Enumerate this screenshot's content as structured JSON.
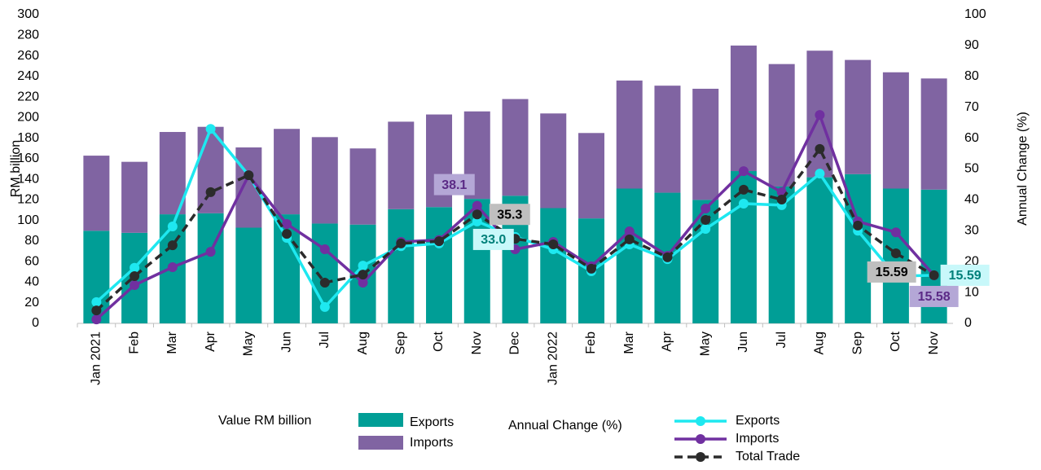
{
  "chart_data": {
    "type": "bar-line",
    "ylabel": "RM billion",
    "y2label": "Annual Change (%)",
    "categories": [
      "Jan 2021",
      "Feb",
      "Mar",
      "Apr",
      "May",
      "Jun",
      "Jul",
      "Aug",
      "Sep",
      "Oct",
      "Nov",
      "Dec",
      "Jan 2022",
      "Feb",
      "Mar",
      "Apr",
      "May",
      "Jun",
      "Jul",
      "Aug",
      "Sep",
      "Oct",
      "Nov"
    ],
    "ylim": [
      0,
      300
    ],
    "yticks": [
      0,
      20,
      40,
      60,
      80,
      100,
      120,
      140,
      160,
      180,
      200,
      220,
      240,
      260,
      280,
      300
    ],
    "y2lim": [
      0,
      100
    ],
    "y2ticks": [
      0,
      10,
      20,
      30,
      40,
      50,
      60,
      70,
      80,
      90,
      100
    ],
    "legend_titles": [
      "Value RM billion",
      "Annual Change (%)"
    ],
    "series": [
      {
        "name": "Exports",
        "kind": "bar",
        "color": "#009e96",
        "values": [
          90,
          88,
          106,
          107,
          93,
          106,
          97,
          96,
          111,
          113,
          121,
          124,
          112,
          102,
          131,
          127,
          120,
          148,
          133,
          142,
          145,
          131,
          130
        ]
      },
      {
        "name": "Imports",
        "kind": "bar",
        "color": "#8064a2",
        "values": [
          73,
          69,
          80,
          84,
          78,
          83,
          84,
          74,
          85,
          90,
          85,
          94,
          92,
          83,
          105,
          104,
          108,
          122,
          119,
          123,
          111,
          113,
          108
        ]
      },
      {
        "name": "Exports",
        "kind": "line",
        "axis": "y2",
        "color": "#1ee8f0",
        "label_bg": "#c8f8fa",
        "label_color": "#00807a",
        "values": [
          6.9,
          18,
          31.4,
          63,
          48,
          27.7,
          5.3,
          18.7,
          25,
          25.9,
          33.0,
          28,
          24,
          16.9,
          25.6,
          20.8,
          30.6,
          38.8,
          38.3,
          48.5,
          30,
          15.3,
          15.59
        ],
        "value_labels": [
          null,
          null,
          null,
          null,
          null,
          null,
          null,
          null,
          null,
          null,
          "33.0",
          null,
          null,
          null,
          null,
          null,
          null,
          null,
          null,
          null,
          null,
          null,
          "15.59"
        ]
      },
      {
        "name": "Imports",
        "kind": "line",
        "axis": "y2",
        "color": "#7030a0",
        "label_bg": "#b4a7d6",
        "label_color": "#5b2a86",
        "values": [
          1.3,
          12.4,
          18.2,
          23.2,
          48,
          32.2,
          24,
          13.2,
          26.4,
          27,
          38.1,
          24,
          26.4,
          18.5,
          29.8,
          21.9,
          37.2,
          49.3,
          42.5,
          67.5,
          33,
          29.5,
          15.58
        ],
        "value_labels": [
          null,
          null,
          null,
          null,
          null,
          null,
          null,
          null,
          null,
          null,
          "38.1",
          null,
          null,
          null,
          null,
          null,
          null,
          null,
          null,
          null,
          null,
          null,
          "15.58"
        ]
      },
      {
        "name": "Total Trade",
        "kind": "line",
        "axis": "y2",
        "color": "#2b2b2b",
        "dashed": true,
        "label_bg": "#bfbfbf",
        "label_color": "#000",
        "values": [
          4.2,
          15.3,
          25.3,
          42.5,
          48,
          29,
          13.2,
          15.8,
          25.9,
          26.6,
          35.3,
          27.4,
          25.6,
          17.7,
          27.2,
          21.4,
          33.5,
          43.3,
          40.1,
          56.5,
          31.7,
          22.7,
          15.59
        ],
        "value_labels": [
          null,
          null,
          null,
          null,
          null,
          null,
          null,
          null,
          null,
          null,
          "35.3",
          null,
          null,
          null,
          null,
          null,
          null,
          null,
          null,
          null,
          null,
          null,
          "15.59"
        ]
      }
    ]
  }
}
